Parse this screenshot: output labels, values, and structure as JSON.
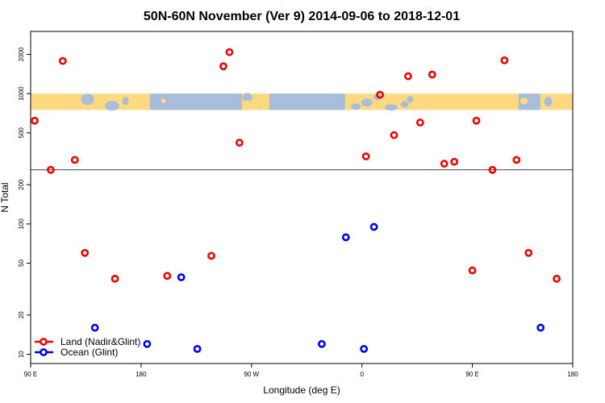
{
  "chart_data": {
    "type": "scatter",
    "title": "50N-60N November (Ver 9)   2014-09-06 to 2018-12-01",
    "xlabel": "Longitude (deg E)",
    "ylabel": "N Total",
    "x_scale": "linear",
    "y_scale": "log",
    "xlim": [
      -90,
      180
    ],
    "ylim": [
      8.5,
      3000
    ],
    "x_ticks": [
      {
        "value": -90,
        "label": "90 E"
      },
      {
        "value": -35,
        "label": "180"
      },
      {
        "value": 20,
        "label": "90 W"
      },
      {
        "value": 75,
        "label": "0"
      },
      {
        "value": 130,
        "label": "90 E"
      },
      {
        "value": 185,
        "label": "180"
      }
    ],
    "y_ticks": [
      {
        "value": 10,
        "label": "10"
      },
      {
        "value": 20,
        "label": "20"
      },
      {
        "value": 50,
        "label": "50"
      },
      {
        "value": 100,
        "label": "100"
      },
      {
        "value": 200,
        "label": "200"
      },
      {
        "value": 500,
        "label": "500"
      },
      {
        "value": 1000,
        "label": "1000"
      },
      {
        "value": 2000,
        "label": "2000"
      }
    ],
    "reference_line_y": 260,
    "map_band": {
      "y_min": 750,
      "y_max": 1000,
      "land_color": "#FFD980",
      "ocean_color": "#A8BDDC"
    },
    "legend_position": "bottom-left",
    "series": [
      {
        "name": "Land (Nadir&Glint)",
        "color": "#EE0000",
        "points": [
          [
            -88,
            620
          ],
          [
            -80,
            260
          ],
          [
            -74,
            1780
          ],
          [
            -68,
            310
          ],
          [
            -63,
            60
          ],
          [
            -48,
            38
          ],
          [
            -22,
            40
          ],
          [
            0,
            57
          ],
          [
            6,
            1620
          ],
          [
            9,
            2080
          ],
          [
            14,
            420
          ],
          [
            77,
            330
          ],
          [
            84,
            980
          ],
          [
            91,
            480
          ],
          [
            98,
            1360
          ],
          [
            104,
            600
          ],
          [
            110,
            1400
          ],
          [
            116,
            290
          ],
          [
            121,
            300
          ],
          [
            130,
            44
          ],
          [
            132,
            620
          ],
          [
            140,
            260
          ],
          [
            146,
            1800
          ],
          [
            152,
            310
          ],
          [
            158,
            60
          ],
          [
            172,
            38
          ]
        ]
      },
      {
        "name": "Ocean (Glint)",
        "color": "#0000EE",
        "points": [
          [
            -58,
            16
          ],
          [
            -32,
            12
          ],
          [
            -15,
            39
          ],
          [
            -7,
            11
          ],
          [
            55,
            12
          ],
          [
            67,
            79
          ],
          [
            81,
            95
          ],
          [
            76,
            11
          ],
          [
            164,
            16
          ]
        ]
      }
    ]
  }
}
